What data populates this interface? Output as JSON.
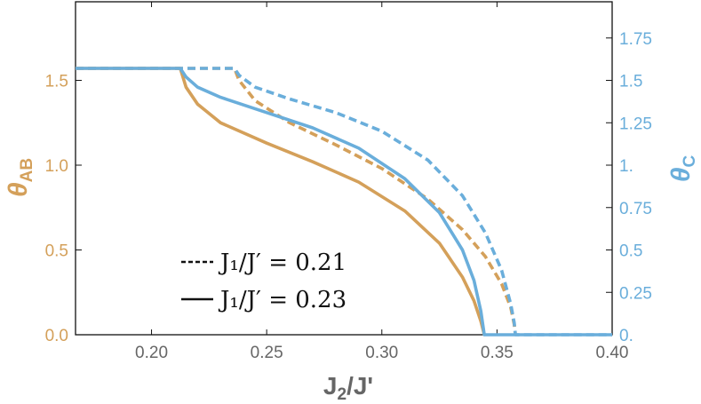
{
  "chart_data": {
    "type": "line",
    "xlabel": {
      "main": "J",
      "sub": "2",
      "tail": "/J'"
    },
    "ylabel_left": {
      "main": "θ",
      "sub": "AB"
    },
    "ylabel_right": {
      "main": "θ",
      "sub": "C"
    },
    "xlim": [
      0.167,
      0.4
    ],
    "ylim_left": [
      0,
      1.9635
    ],
    "ylim_right": [
      0,
      1.9635
    ],
    "x_ticks": [
      "0.20",
      "0.25",
      "0.30",
      "0.35",
      "0.40"
    ],
    "x_tick_values": [
      0.2,
      0.25,
      0.3,
      0.35,
      0.4
    ],
    "y_left_ticks": [
      "0.0",
      "0.5",
      "1.0",
      "1.5"
    ],
    "y_left_tick_values": [
      0.0,
      0.5,
      1.0,
      1.5
    ],
    "y_right_ticks": [
      "0.",
      "0.25",
      "0.5",
      "0.75",
      "1.",
      "1.25",
      "1.5",
      "1.75"
    ],
    "y_right_tick_values": [
      0.0,
      0.25,
      0.5,
      0.75,
      1.0,
      1.25,
      1.5,
      1.75
    ],
    "colors": {
      "theta_AB": "#d4a05a",
      "theta_C": "#6aaedb",
      "axis_left_text": "#d4a05a",
      "axis_right_text": "#6aaedb",
      "axis_bottom_text": "#666666"
    },
    "legend": [
      {
        "style": "dashed",
        "text": "J₁/J′ = 0.21"
      },
      {
        "style": "solid",
        "text": "J₁/J′ = 0.23"
      }
    ],
    "legend_placement": "bottom-left",
    "grid": false,
    "series": [
      {
        "quantity": "θ_AB",
        "J1_over_Jprime": 0.21,
        "style": "dashed",
        "color": "#d4a05a",
        "axis": "left",
        "x": [
          0.167,
          0.236,
          0.238,
          0.245,
          0.26,
          0.28,
          0.3,
          0.32,
          0.335,
          0.345,
          0.352,
          0.356,
          0.3575,
          0.358
        ],
        "y": [
          1.5708,
          1.5708,
          1.5,
          1.38,
          1.25,
          1.12,
          0.98,
          0.8,
          0.62,
          0.46,
          0.3,
          0.16,
          0.06,
          0.0
        ]
      },
      {
        "quantity": "θ_C",
        "J1_over_Jprime": 0.21,
        "style": "dashed",
        "color": "#6aaedb",
        "axis": "right",
        "x": [
          0.167,
          0.236,
          0.238,
          0.245,
          0.26,
          0.28,
          0.3,
          0.32,
          0.335,
          0.345,
          0.352,
          0.356,
          0.3575,
          0.358,
          0.359,
          0.4
        ],
        "y": [
          1.5708,
          1.5708,
          1.53,
          1.46,
          1.39,
          1.31,
          1.2,
          1.03,
          0.82,
          0.6,
          0.38,
          0.18,
          0.07,
          0.0,
          0.0,
          0.0
        ]
      },
      {
        "quantity": "θ_AB",
        "J1_over_Jprime": 0.23,
        "style": "solid",
        "color": "#d4a05a",
        "axis": "left",
        "x": [
          0.167,
          0.2125,
          0.215,
          0.22,
          0.23,
          0.25,
          0.27,
          0.29,
          0.31,
          0.325,
          0.335,
          0.34,
          0.343,
          0.3445
        ],
        "y": [
          1.5708,
          1.5708,
          1.46,
          1.36,
          1.25,
          1.13,
          1.02,
          0.9,
          0.73,
          0.54,
          0.34,
          0.2,
          0.08,
          0.0
        ]
      },
      {
        "quantity": "θ_C",
        "J1_over_Jprime": 0.23,
        "style": "solid",
        "color": "#6aaedb",
        "axis": "right",
        "x": [
          0.167,
          0.2125,
          0.215,
          0.22,
          0.23,
          0.25,
          0.27,
          0.29,
          0.31,
          0.325,
          0.335,
          0.34,
          0.343,
          0.3445,
          0.346,
          0.4
        ],
        "y": [
          1.5708,
          1.5708,
          1.52,
          1.46,
          1.4,
          1.31,
          1.22,
          1.1,
          0.92,
          0.72,
          0.5,
          0.32,
          0.14,
          0.0,
          0.0,
          0.0
        ]
      }
    ]
  }
}
